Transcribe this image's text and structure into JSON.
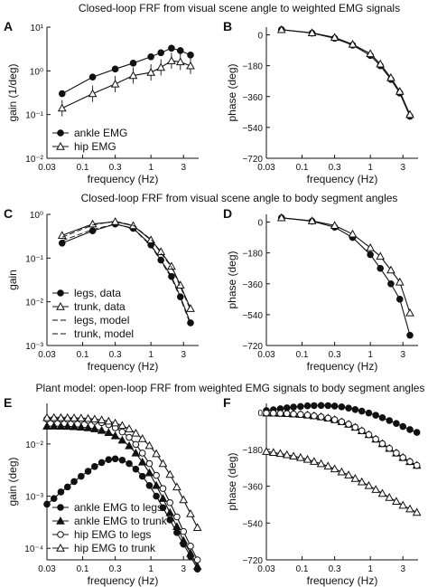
{
  "figure": {
    "row_titles": [
      "Closed-loop FRF from visual scene angle to weighted EMG signals",
      "Closed-loop FRF from visual scene angle to body segment angles",
      "Plant model: open-loop FRF from weighted EMG signals to body segment angles"
    ],
    "xlabel": "frequency  (Hz)"
  },
  "chart_data": [
    {
      "id": "A",
      "type": "line",
      "scale": "log",
      "panel": "A",
      "xlabel": "frequency  (Hz)",
      "ylabel": "gain  (1/deg)",
      "xlim": [
        0.03,
        5
      ],
      "ylim": [
        0.01,
        10
      ],
      "xticks": [
        0.03,
        0.1,
        0.3,
        1,
        3
      ],
      "xticklabels": [
        "0.03",
        "0.1",
        "0.3",
        "1",
        "3"
      ],
      "yticks": [
        0.01,
        0.1,
        1,
        10
      ],
      "yticklabels": [
        "10⁻²",
        "10⁻¹",
        "10⁰",
        "10¹"
      ],
      "legend": "lower-left",
      "series": [
        {
          "name": "ankle EMG",
          "marker": "filled-circle",
          "line": "solid",
          "x": [
            0.05,
            0.14,
            0.3,
            0.55,
            1.0,
            1.4,
            2.0,
            2.7,
            3.8
          ],
          "y": [
            0.3,
            0.72,
            1.1,
            1.5,
            2.1,
            2.6,
            3.3,
            2.9,
            2.3
          ]
        },
        {
          "name": "hip EMG",
          "marker": "open-triangle",
          "line": "solid",
          "errorbars": true,
          "x": [
            0.05,
            0.14,
            0.3,
            0.55,
            1.0,
            1.4,
            2.0,
            2.7,
            3.8
          ],
          "y": [
            0.14,
            0.3,
            0.5,
            0.78,
            0.92,
            1.2,
            1.7,
            1.6,
            1.3
          ]
        }
      ]
    },
    {
      "id": "B",
      "type": "line",
      "scale": "log-x",
      "panel": "B",
      "xlabel": "frequency  (Hz)",
      "ylabel": "phase  (deg)",
      "xlim": [
        0.03,
        5
      ],
      "ylim": [
        -720,
        45
      ],
      "xticks": [
        0.03,
        0.1,
        0.3,
        1,
        3
      ],
      "xticklabels": [
        "0.03",
        "0.1",
        "0.3",
        "1",
        "3"
      ],
      "yticks": [
        0,
        -180,
        -360,
        -540,
        -720
      ],
      "yticklabels": [
        "0",
        "−180",
        "−360",
        "−540",
        "−720"
      ],
      "series": [
        {
          "name": "ankle EMG",
          "marker": "filled-circle",
          "line": "solid",
          "x": [
            0.05,
            0.14,
            0.3,
            0.55,
            1.0,
            1.4,
            2.0,
            2.7,
            3.8
          ],
          "y": [
            30,
            10,
            -20,
            -60,
            -120,
            -180,
            -260,
            -340,
            -475
          ]
        },
        {
          "name": "hip EMG",
          "marker": "open-triangle",
          "line": "solid",
          "x": [
            0.05,
            0.14,
            0.3,
            0.55,
            1.0,
            1.4,
            2.0,
            2.7,
            3.8
          ],
          "y": [
            30,
            12,
            -15,
            -55,
            -110,
            -170,
            -250,
            -330,
            -465
          ]
        }
      ]
    },
    {
      "id": "C",
      "type": "line",
      "scale": "log",
      "panel": "C",
      "xlabel": "frequency  (Hz)",
      "ylabel": "gain",
      "xlim": [
        0.03,
        5
      ],
      "ylim": [
        0.001,
        1
      ],
      "xticks": [
        0.03,
        0.1,
        0.3,
        1,
        3
      ],
      "xticklabels": [
        "0.03",
        "0.1",
        "0.3",
        "1",
        "3"
      ],
      "yticks": [
        0.001,
        0.01,
        0.1,
        1
      ],
      "yticklabels": [
        "10⁻³",
        "10⁻²",
        "10⁻¹",
        "10⁰"
      ],
      "legend": "lower-left",
      "series": [
        {
          "name": "legs, data",
          "marker": "filled-circle",
          "line": "solid",
          "x": [
            0.05,
            0.14,
            0.3,
            0.55,
            1.0,
            1.4,
            2.0,
            2.7,
            3.8
          ],
          "y": [
            0.22,
            0.42,
            0.6,
            0.48,
            0.2,
            0.09,
            0.038,
            0.013,
            0.0033
          ]
        },
        {
          "name": "trunk, data",
          "marker": "open-triangle",
          "line": "solid",
          "x": [
            0.05,
            0.14,
            0.3,
            0.55,
            1.0,
            1.4,
            2.0,
            2.7,
            3.8
          ],
          "y": [
            0.33,
            0.6,
            0.68,
            0.55,
            0.26,
            0.14,
            0.065,
            0.024,
            0.007
          ]
        },
        {
          "name": "legs, model",
          "marker": "none",
          "line": "dashed",
          "x": [
            0.05,
            0.14,
            0.3,
            0.55,
            1.0,
            1.4,
            2.0,
            2.7,
            3.8
          ],
          "y": [
            0.25,
            0.45,
            0.6,
            0.47,
            0.19,
            0.085,
            0.035,
            0.012,
            0.003
          ]
        },
        {
          "name": "trunk, model",
          "marker": "none",
          "line": "dashed",
          "x": [
            0.05,
            0.14,
            0.3,
            0.55,
            1.0,
            1.4,
            2.0,
            2.7,
            3.8
          ],
          "y": [
            0.3,
            0.57,
            0.7,
            0.56,
            0.27,
            0.13,
            0.062,
            0.022,
            0.0065
          ]
        }
      ]
    },
    {
      "id": "D",
      "type": "line",
      "scale": "log-x",
      "panel": "D",
      "xlabel": "frequency  (Hz)",
      "ylabel": "phase  (deg)",
      "xlim": [
        0.03,
        5
      ],
      "ylim": [
        -720,
        45
      ],
      "xticks": [
        0.03,
        0.1,
        0.3,
        1,
        3
      ],
      "xticklabels": [
        "0.03",
        "0.1",
        "0.3",
        "1",
        "3"
      ],
      "yticks": [
        0,
        -180,
        -360,
        -540,
        -720
      ],
      "yticklabels": [
        "0",
        "−180",
        "−360",
        "−540",
        "−720"
      ],
      "series": [
        {
          "name": "legs, data",
          "marker": "filled-circle",
          "line": "solid",
          "x": [
            0.05,
            0.14,
            0.3,
            0.55,
            1.0,
            1.4,
            2.0,
            2.7,
            3.8
          ],
          "y": [
            25,
            5,
            -30,
            -90,
            -190,
            -270,
            -360,
            -450,
            -660
          ]
        },
        {
          "name": "trunk, data",
          "marker": "open-triangle",
          "line": "solid",
          "x": [
            0.05,
            0.14,
            0.3,
            0.55,
            1.0,
            1.4,
            2.0,
            2.7,
            3.8
          ],
          "y": [
            25,
            7,
            -20,
            -70,
            -150,
            -200,
            -280,
            -350,
            -530
          ]
        }
      ]
    },
    {
      "id": "E",
      "type": "line",
      "scale": "log",
      "panel": "E",
      "xlabel": "frequency  (Hz)",
      "ylabel": "gain  (deg)",
      "xlim": [
        0.03,
        5
      ],
      "ylim": [
        6e-05,
        0.06
      ],
      "xticks": [
        0.03,
        0.1,
        0.3,
        1,
        3
      ],
      "xticklabels": [
        "0.03",
        "0.1",
        "0.3",
        "1",
        "3"
      ],
      "yticks": [
        0.0001,
        0.001,
        0.01
      ],
      "yticklabels": [
        "10⁻⁴",
        "10⁻³",
        "10⁻²"
      ],
      "legend": "lower-left",
      "series": [
        {
          "name": "ankle EMG to legs",
          "marker": "filled-circle",
          "line": "solid",
          "x": [
            0.03,
            0.038,
            0.048,
            0.06,
            0.075,
            0.095,
            0.12,
            0.15,
            0.19,
            0.24,
            0.3,
            0.38,
            0.48,
            0.6,
            0.75,
            0.95,
            1.2,
            1.5,
            1.9,
            2.4,
            3.0,
            3.8,
            4.8
          ],
          "y": [
            0.0007,
            0.0009,
            0.0012,
            0.0015,
            0.0019,
            0.0024,
            0.003,
            0.0037,
            0.0044,
            0.005,
            0.0052,
            0.0049,
            0.0042,
            0.0033,
            0.0024,
            0.0016,
            0.001,
            0.0006,
            0.00035,
            0.0002,
            0.00012,
            7e-05,
            4e-05
          ]
        },
        {
          "name": "ankle EMG to trunk",
          "marker": "filled-triangle",
          "line": "solid",
          "x": [
            0.03,
            0.038,
            0.048,
            0.06,
            0.075,
            0.095,
            0.12,
            0.15,
            0.19,
            0.24,
            0.3,
            0.38,
            0.48,
            0.6,
            0.75,
            0.95,
            1.2,
            1.5,
            1.9,
            2.4,
            3.0,
            3.8,
            4.8
          ],
          "y": [
            0.022,
            0.022,
            0.0219,
            0.0217,
            0.0214,
            0.021,
            0.0204,
            0.0195,
            0.0182,
            0.0165,
            0.0143,
            0.0118,
            0.0092,
            0.0067,
            0.0045,
            0.0028,
            0.0016,
            0.0009,
            0.00048,
            0.00026,
            0.00014,
            8e-05,
            4.5e-05
          ]
        },
        {
          "name": "hip EMG to legs",
          "marker": "open-circle",
          "line": "solid",
          "x": [
            0.03,
            0.038,
            0.048,
            0.06,
            0.075,
            0.095,
            0.12,
            0.15,
            0.19,
            0.24,
            0.3,
            0.38,
            0.48,
            0.6,
            0.75,
            0.95,
            1.2,
            1.5,
            1.9,
            2.4,
            3.0,
            3.8,
            4.8
          ],
          "y": [
            0.03,
            0.03,
            0.0299,
            0.0297,
            0.0294,
            0.029,
            0.0283,
            0.0272,
            0.0256,
            0.0234,
            0.0205,
            0.017,
            0.0134,
            0.0098,
            0.0067,
            0.0042,
            0.0025,
            0.0014,
            0.00075,
            0.0004,
            0.00021,
            0.00011,
            6e-05
          ]
        },
        {
          "name": "hip EMG to trunk",
          "marker": "open-triangle",
          "line": "solid",
          "x": [
            0.03,
            0.038,
            0.048,
            0.06,
            0.075,
            0.095,
            0.12,
            0.15,
            0.19,
            0.24,
            0.3,
            0.38,
            0.48,
            0.6,
            0.75,
            0.95,
            1.2,
            1.5,
            1.9,
            2.4,
            3.0,
            3.8,
            4.8
          ],
          "y": [
            0.032,
            0.032,
            0.0319,
            0.0318,
            0.0316,
            0.0313,
            0.0308,
            0.03,
            0.0289,
            0.0273,
            0.0252,
            0.0226,
            0.0195,
            0.0161,
            0.0126,
            0.0093,
            0.0065,
            0.0042,
            0.0026,
            0.0015,
            0.00085,
            0.00046,
            0.00025
          ]
        }
      ]
    },
    {
      "id": "F",
      "type": "line",
      "scale": "log-x",
      "panel": "F",
      "xlabel": "frequency  (Hz)",
      "ylabel": "phase  (deg)",
      "xlim": [
        0.03,
        5
      ],
      "ylim": [
        -720,
        45
      ],
      "xticks": [
        0.03,
        0.1,
        0.3,
        1,
        3
      ],
      "xticklabels": [
        "0.03",
        "0.1",
        "0.3",
        "1",
        "3"
      ],
      "yticks": [
        0,
        -180,
        -360,
        -540,
        -720
      ],
      "yticklabels": [
        "0",
        "−180",
        "−360",
        "−540",
        "−720"
      ],
      "series": [
        {
          "name": "ankle EMG to legs",
          "marker": "filled-circle",
          "line": "solid",
          "x": [
            0.03,
            0.038,
            0.048,
            0.06,
            0.075,
            0.095,
            0.12,
            0.15,
            0.19,
            0.24,
            0.3,
            0.38,
            0.48,
            0.6,
            0.75,
            0.95,
            1.2,
            1.5,
            1.9,
            2.4,
            3.0,
            3.8,
            4.8
          ],
          "y": [
            10,
            14,
            19,
            23,
            27,
            30,
            33,
            34,
            35,
            34,
            32,
            28,
            22,
            15,
            7,
            -2,
            -13,
            -25,
            -39,
            -53,
            -68,
            -83,
            -97
          ]
        },
        {
          "name": "ankle EMG to trunk",
          "marker": "filled-triangle",
          "line": "solid",
          "x": [
            0.03,
            0.038,
            0.048,
            0.06,
            0.075,
            0.095,
            0.12,
            0.15,
            0.19,
            0.24,
            0.3,
            0.38,
            0.48,
            0.6,
            0.75,
            0.95,
            1.2,
            1.5,
            1.9,
            2.4,
            3.0,
            3.8,
            4.8
          ],
          "y": [
            -2,
            -3,
            -4,
            -5,
            -7,
            -9,
            -12,
            -16,
            -21,
            -27,
            -35,
            -45,
            -57,
            -72,
            -89,
            -108,
            -130,
            -152,
            -175,
            -198,
            -220,
            -240,
            -258
          ]
        },
        {
          "name": "hip EMG to legs",
          "marker": "open-circle",
          "line": "solid",
          "x": [
            0.03,
            0.038,
            0.048,
            0.06,
            0.075,
            0.095,
            0.12,
            0.15,
            0.19,
            0.24,
            0.3,
            0.38,
            0.48,
            0.6,
            0.75,
            0.95,
            1.2,
            1.5,
            1.9,
            2.4,
            3.0,
            3.8,
            4.8
          ],
          "y": [
            -2,
            -3,
            -4,
            -5,
            -7,
            -9,
            -12,
            -16,
            -21,
            -27,
            -35,
            -45,
            -57,
            -72,
            -89,
            -108,
            -130,
            -152,
            -175,
            -198,
            -220,
            -240,
            -258
          ]
        },
        {
          "name": "hip EMG to trunk",
          "marker": "open-triangle",
          "line": "solid",
          "x": [
            0.03,
            0.038,
            0.048,
            0.06,
            0.075,
            0.095,
            0.12,
            0.15,
            0.19,
            0.24,
            0.3,
            0.38,
            0.48,
            0.6,
            0.75,
            0.95,
            1.2,
            1.5,
            1.9,
            2.4,
            3.0,
            3.8,
            4.8
          ],
          "y": [
            -190,
            -195,
            -200,
            -206,
            -213,
            -220,
            -229,
            -239,
            -250,
            -262,
            -275,
            -290,
            -305,
            -322,
            -339,
            -357,
            -376,
            -395,
            -415,
            -434,
            -453,
            -471,
            -488
          ]
        }
      ]
    }
  ]
}
